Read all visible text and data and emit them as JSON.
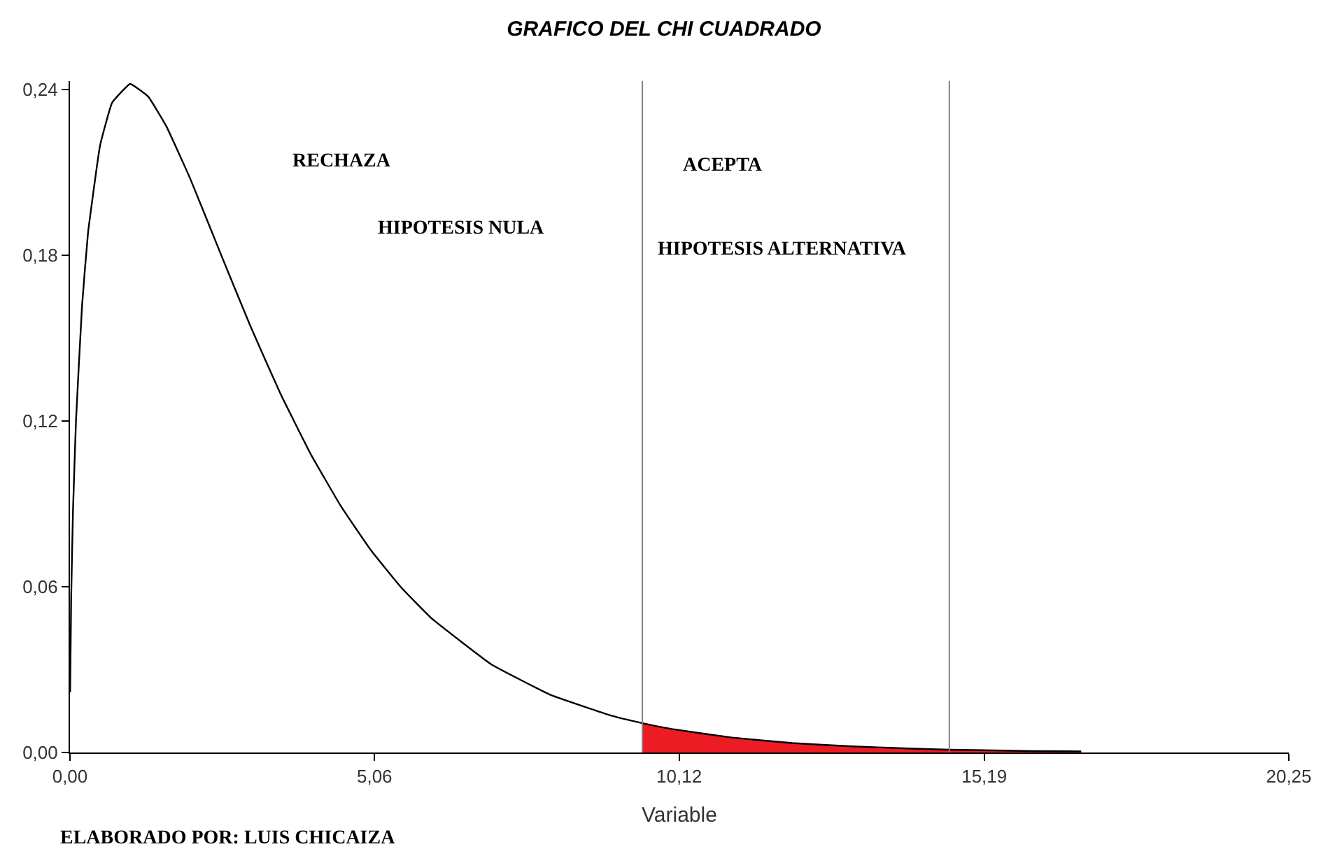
{
  "chart_data": {
    "type": "line",
    "title": "GRAFICO DEL CHI CUADRADO",
    "xlabel": "Variable",
    "series": [
      {
        "type": "area",
        "color": "#ed1c24",
        "x": [
          9.51,
          10,
          11,
          12,
          13,
          14,
          14.61,
          15,
          16,
          16.8
        ],
        "values": [
          0.0106,
          0.0085,
          0.0054,
          0.0034,
          0.0022,
          0.0014,
          0.001,
          0.0009,
          0.0005,
          0.0004
        ]
      },
      {
        "color": "#000000",
        "x": [
          0.003,
          0.02,
          0.05,
          0.1,
          0.2,
          0.3,
          0.5,
          0.7,
          1,
          1.3,
          1.6,
          2,
          2.5,
          3,
          3.5,
          4,
          4.5,
          5,
          5.5,
          6,
          7,
          8,
          9,
          9.51,
          10,
          11,
          12,
          13,
          14,
          14.61,
          15,
          16,
          16.8
        ],
        "values": [
          0.0218,
          0.0559,
          0.0872,
          0.12,
          0.1614,
          0.1881,
          0.2197,
          0.2352,
          0.242,
          0.2374,
          0.2267,
          0.2076,
          0.1807,
          0.1542,
          0.1297,
          0.108,
          0.0892,
          0.0732,
          0.0598,
          0.0487,
          0.0319,
          0.0207,
          0.0133,
          0.0106,
          0.0085,
          0.0054,
          0.0034,
          0.0022,
          0.0014,
          0.001,
          0.0009,
          0.0005,
          0.0004
        ]
      }
    ],
    "xlim": [
      0,
      20.25
    ],
    "ylim": [
      0,
      0.243
    ],
    "xticks": [
      {
        "value": 0,
        "label": "0,00"
      },
      {
        "value": 5.06,
        "label": "5,06"
      },
      {
        "value": 10.12,
        "label": "10,12"
      },
      {
        "value": 15.19,
        "label": "15,19"
      },
      {
        "value": 20.25,
        "label": "20,25"
      }
    ],
    "yticks": [
      {
        "value": 0,
        "label": "0,00"
      },
      {
        "value": 0.06,
        "label": "0,06"
      },
      {
        "value": 0.12,
        "label": "0,12"
      },
      {
        "value": 0.18,
        "label": "0,18"
      },
      {
        "value": 0.24,
        "label": "0,24"
      }
    ],
    "ref_lines": [
      {
        "axis": "x",
        "value": 9.51,
        "color": "#808080"
      },
      {
        "axis": "x",
        "value": 14.61,
        "color": "#808080"
      }
    ],
    "annotations": [
      "RECHAZA",
      "HIPOTESIS NULA",
      "ACEPTA",
      "HIPOTESIS ALTERNATIVA",
      "ELABORADO POR: LUIS CHICAIZA"
    ]
  }
}
